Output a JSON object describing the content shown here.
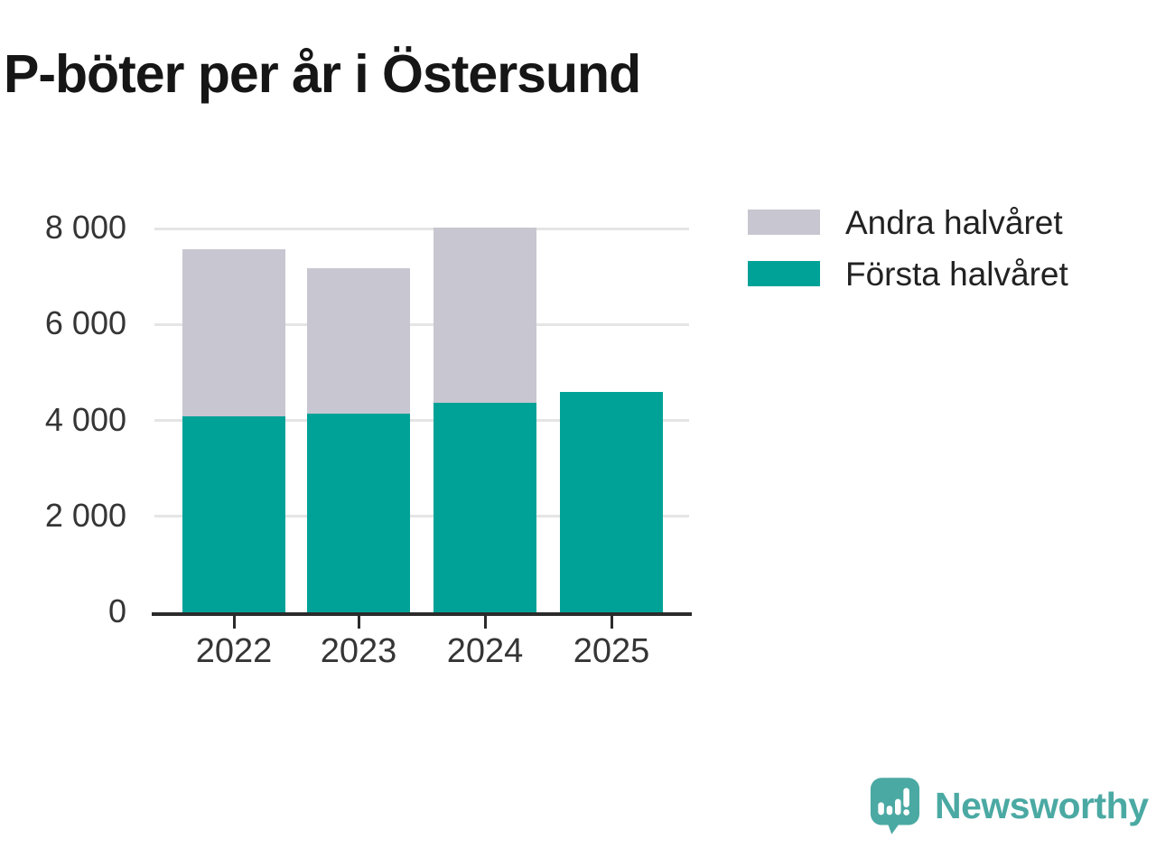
{
  "title": "P-böter per år i Östersund",
  "chart_data": {
    "type": "bar",
    "stacked": true,
    "title": "P-böter per år i Östersund",
    "categories": [
      "2022",
      "2023",
      "2024",
      "2025"
    ],
    "series": [
      {
        "name": "Andra halvåret",
        "color": "#c8c6d0",
        "values": [
          3480,
          3030,
          3650,
          null
        ]
      },
      {
        "name": "Första halvåret",
        "color": "#00a298",
        "values": [
          4090,
          4140,
          4370,
          4590
        ]
      }
    ],
    "stack_totals": [
      7570,
      7170,
      8020,
      4590
    ],
    "y_ticks": [
      {
        "value": 0,
        "label": "0"
      },
      {
        "value": 2000,
        "label": "2 000"
      },
      {
        "value": 4000,
        "label": "4 000"
      },
      {
        "value": 6000,
        "label": "6 000"
      },
      {
        "value": 8000,
        "label": "8 000"
      }
    ],
    "ylim": [
      0,
      8000
    ],
    "xlabel": "",
    "ylabel": "",
    "grid": "horizontal",
    "legend_position": "top-right"
  },
  "colors": {
    "first_half": "#00a298",
    "second_half": "#c8c6d0",
    "axis_line": "#2b2b2b",
    "grid": "#e5e5e5",
    "text": "#353535",
    "title_text": "#161616",
    "brand_teal": "#4ba9a3"
  },
  "footer": {
    "brand": "Newsworthy"
  },
  "icons": {
    "logo": "newsworthy-bar-chart-speech-bubble-icon"
  }
}
